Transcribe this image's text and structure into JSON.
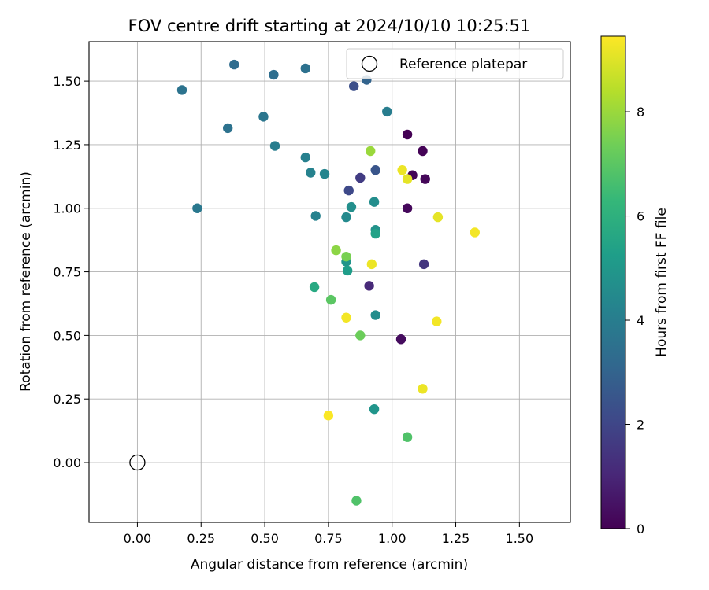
{
  "chart_data": {
    "type": "scatter",
    "title": "FOV centre drift starting at 2024/10/10 10:25:51",
    "xlabel": "Angular distance from reference (arcmin)",
    "ylabel": "Rotation from reference (arcmin)",
    "xlim": [
      -0.19,
      1.7
    ],
    "ylim": [
      -0.235,
      1.655
    ],
    "xticks": [
      "0.00",
      "0.25",
      "0.50",
      "0.75",
      "1.00",
      "1.25",
      "1.50"
    ],
    "yticks": [
      "0.00",
      "0.25",
      "0.50",
      "0.75",
      "1.00",
      "1.25",
      "1.50"
    ],
    "grid": true,
    "legend": {
      "placement": "top-right",
      "label": "Reference platepar"
    },
    "reference_point": {
      "x": 0.0,
      "y": 0.0
    },
    "colorbar": {
      "label": "Hours from first FF file",
      "range": [
        0,
        9.45
      ],
      "ticks": [
        "0",
        "2",
        "4",
        "6",
        "8"
      ],
      "colormap": [
        "#440154",
        "#482878",
        "#3e4989",
        "#31688e",
        "#26828e",
        "#1f9e89",
        "#35b779",
        "#6ece58",
        "#b5de2b",
        "#fde725"
      ]
    },
    "points": [
      {
        "x": 1.06,
        "y": 1.29,
        "h": 0.0
      },
      {
        "x": 1.12,
        "y": 1.225,
        "h": 0.05
      },
      {
        "x": 1.08,
        "y": 1.13,
        "h": 0.1
      },
      {
        "x": 1.13,
        "y": 1.115,
        "h": 0.15
      },
      {
        "x": 1.06,
        "y": 1.0,
        "h": 0.2
      },
      {
        "x": 1.035,
        "y": 0.485,
        "h": 0.3
      },
      {
        "x": 0.91,
        "y": 0.695,
        "h": 1.1
      },
      {
        "x": 1.125,
        "y": 0.78,
        "h": 1.5
      },
      {
        "x": 0.875,
        "y": 1.12,
        "h": 1.7
      },
      {
        "x": 0.83,
        "y": 1.07,
        "h": 2.1
      },
      {
        "x": 0.85,
        "y": 1.48,
        "h": 2.3
      },
      {
        "x": 0.935,
        "y": 1.15,
        "h": 2.5
      },
      {
        "x": 0.9,
        "y": 1.505,
        "h": 3.0
      },
      {
        "x": 0.38,
        "y": 1.565,
        "h": 3.3
      },
      {
        "x": 0.535,
        "y": 1.525,
        "h": 3.4
      },
      {
        "x": 0.66,
        "y": 1.55,
        "h": 3.5
      },
      {
        "x": 0.175,
        "y": 1.465,
        "h": 3.6
      },
      {
        "x": 0.355,
        "y": 1.315,
        "h": 3.55
      },
      {
        "x": 0.495,
        "y": 1.36,
        "h": 3.7
      },
      {
        "x": 0.235,
        "y": 1.0,
        "h": 3.8
      },
      {
        "x": 0.98,
        "y": 1.38,
        "h": 4.0
      },
      {
        "x": 0.54,
        "y": 1.245,
        "h": 4.0
      },
      {
        "x": 0.66,
        "y": 1.2,
        "h": 4.1
      },
      {
        "x": 0.68,
        "y": 1.14,
        "h": 4.2
      },
      {
        "x": 0.735,
        "y": 1.135,
        "h": 4.3
      },
      {
        "x": 0.7,
        "y": 0.97,
        "h": 4.2
      },
      {
        "x": 0.82,
        "y": 0.965,
        "h": 4.5
      },
      {
        "x": 0.93,
        "y": 1.025,
        "h": 4.6
      },
      {
        "x": 0.84,
        "y": 1.005,
        "h": 4.7
      },
      {
        "x": 0.935,
        "y": 0.915,
        "h": 4.8
      },
      {
        "x": 0.82,
        "y": 0.79,
        "h": 4.9
      },
      {
        "x": 0.935,
        "y": 0.58,
        "h": 4.6
      },
      {
        "x": 0.93,
        "y": 0.21,
        "h": 4.9
      },
      {
        "x": 0.825,
        "y": 0.755,
        "h": 5.2
      },
      {
        "x": 0.935,
        "y": 0.9,
        "h": 5.4
      },
      {
        "x": 0.695,
        "y": 0.69,
        "h": 5.7
      },
      {
        "x": 1.06,
        "y": 0.1,
        "h": 6.8
      },
      {
        "x": 0.86,
        "y": -0.15,
        "h": 6.8
      },
      {
        "x": 0.76,
        "y": 0.64,
        "h": 7.0
      },
      {
        "x": 0.875,
        "y": 0.5,
        "h": 7.3
      },
      {
        "x": 0.82,
        "y": 0.81,
        "h": 7.5
      },
      {
        "x": 0.78,
        "y": 0.835,
        "h": 7.8
      },
      {
        "x": 0.915,
        "y": 1.225,
        "h": 8.0
      },
      {
        "x": 1.04,
        "y": 1.15,
        "h": 9.2
      },
      {
        "x": 1.06,
        "y": 1.115,
        "h": 9.1
      },
      {
        "x": 1.18,
        "y": 0.965,
        "h": 9.1
      },
      {
        "x": 1.325,
        "y": 0.905,
        "h": 9.3
      },
      {
        "x": 0.92,
        "y": 0.78,
        "h": 9.2
      },
      {
        "x": 0.82,
        "y": 0.57,
        "h": 9.3
      },
      {
        "x": 1.175,
        "y": 0.555,
        "h": 9.3
      },
      {
        "x": 1.12,
        "y": 0.29,
        "h": 9.2
      },
      {
        "x": 0.75,
        "y": 0.185,
        "h": 9.4
      }
    ]
  }
}
